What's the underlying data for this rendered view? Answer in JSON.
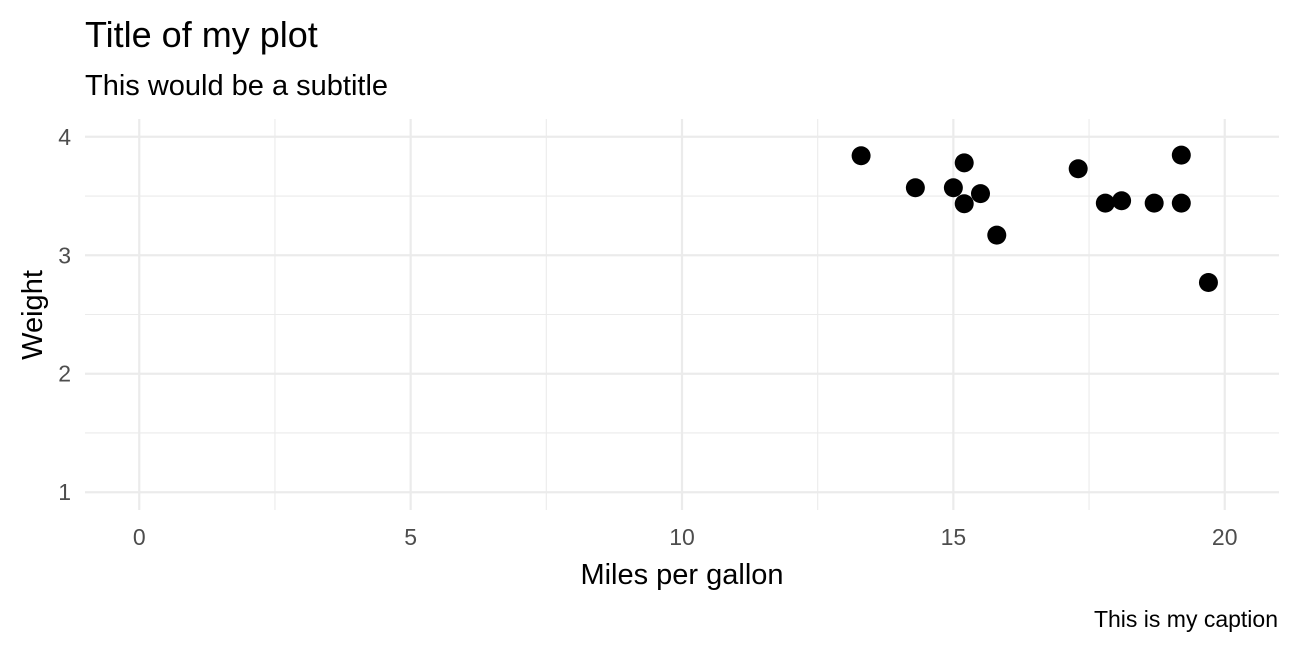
{
  "chart_data": {
    "type": "scatter",
    "title": "Title of my plot",
    "subtitle": "This would be a subtitle",
    "xlabel": "Miles per gallon",
    "ylabel": "Weight",
    "caption": "This is my caption",
    "xlim": [
      -1,
      21
    ],
    "ylim": [
      0.85,
      4.15
    ],
    "x_ticks": [
      0,
      5,
      10,
      15,
      20
    ],
    "y_ticks": [
      1,
      2,
      3,
      4
    ],
    "x_tick_labels": [
      "0",
      "5",
      "10",
      "15",
      "20"
    ],
    "y_tick_labels": [
      "1",
      "2",
      "3",
      "4"
    ],
    "x_minor_ticks": [
      2.5,
      7.5,
      12.5,
      17.5
    ],
    "y_minor_ticks": [
      1.5,
      2.5,
      3.5
    ],
    "grid": true,
    "point_color": "#000000",
    "points": [
      {
        "x": 13.3,
        "y": 3.84
      },
      {
        "x": 14.3,
        "y": 3.57
      },
      {
        "x": 15.0,
        "y": 3.57
      },
      {
        "x": 15.2,
        "y": 3.78
      },
      {
        "x": 15.2,
        "y": 3.435
      },
      {
        "x": 15.5,
        "y": 3.52
      },
      {
        "x": 15.8,
        "y": 3.17
      },
      {
        "x": 17.3,
        "y": 3.73
      },
      {
        "x": 17.8,
        "y": 3.44
      },
      {
        "x": 18.1,
        "y": 3.46
      },
      {
        "x": 18.7,
        "y": 3.44
      },
      {
        "x": 19.2,
        "y": 3.845
      },
      {
        "x": 19.2,
        "y": 3.44
      },
      {
        "x": 19.7,
        "y": 2.77
      }
    ]
  }
}
